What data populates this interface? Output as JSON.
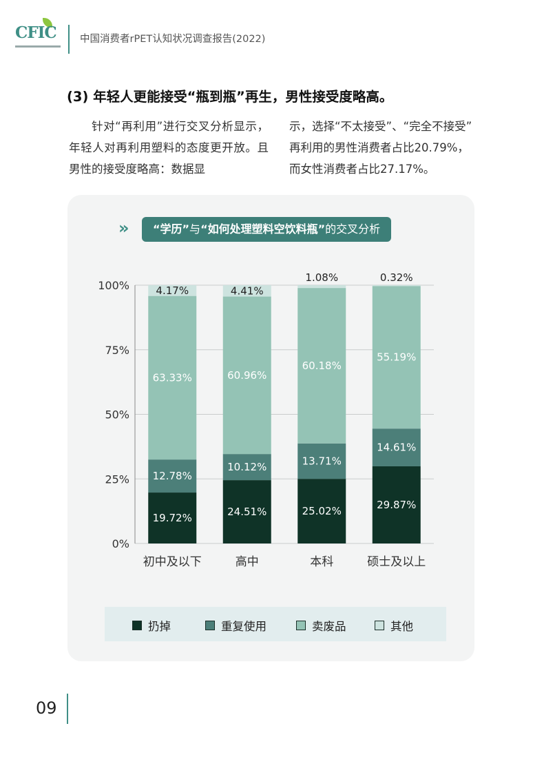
{
  "header": {
    "logo_text": "CFIC",
    "title": "中国消费者rPET认知状况调查报告(2022)"
  },
  "section": {
    "heading": "(3) 年轻人更能接受“瓶到瓶”再生，男性接受度略高。",
    "paragraph_left": "针对“再利用”进行交叉分析显示，年轻人对再利用塑料的态度更开放。且男性的接受度略高：数据显",
    "paragraph_right_1": "示，选择“不太接受”、“完全不接受”",
    "paragraph_right_2": "再利用的男性消费者占比20.79%，",
    "paragraph_right_3": "而女性消费者占比27.17%。"
  },
  "chart_title": {
    "chevrons": "»",
    "part1": "“学历”",
    "part2": "与",
    "part3": "“如何处理塑料空饮料瓶”",
    "part4": "的交叉分析"
  },
  "chart_data": {
    "type": "bar",
    "stacked": true,
    "categories": [
      "初中及以下",
      "高中",
      "本科",
      "硕士及以上"
    ],
    "series": [
      {
        "name": "扔掉",
        "color": "#0f3327",
        "values": [
          19.72,
          24.51,
          25.02,
          29.87
        ],
        "labels": [
          "19.72%",
          "24.51%",
          "25.02%",
          "29.87%"
        ]
      },
      {
        "name": "重复使用",
        "color": "#4c7f79",
        "values": [
          12.78,
          10.12,
          13.71,
          14.61
        ],
        "labels": [
          "12.78%",
          "10.12%",
          "13.71%",
          "14.61%"
        ]
      },
      {
        "name": "卖废品",
        "color": "#94c3b5",
        "values": [
          63.33,
          60.96,
          60.18,
          55.19
        ],
        "labels": [
          "63.33%",
          "60.96%",
          "60.18%",
          "55.19%"
        ]
      },
      {
        "name": "其他",
        "color": "#cde3df",
        "values": [
          4.17,
          4.41,
          1.08,
          0.32
        ],
        "labels": [
          "4.17%",
          "4.41%",
          "1.08%",
          "0.32%"
        ]
      }
    ],
    "y_ticks": [
      "0%",
      "25%",
      "50%",
      "75%",
      "100%"
    ],
    "ylim": [
      0,
      100
    ],
    "grid": true,
    "legend_position": "bottom"
  },
  "page_number": "09"
}
